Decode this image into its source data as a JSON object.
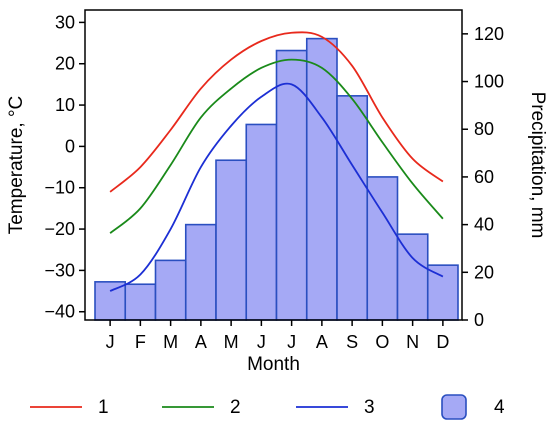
{
  "chart_data": {
    "type": "bar",
    "categories": [
      "J",
      "F",
      "M",
      "A",
      "M",
      "J",
      "J",
      "A",
      "S",
      "O",
      "N",
      "D"
    ],
    "xlabel": "Month",
    "ylabel_left": "Temperature, °C",
    "ylabel_right": "Precipitation, mm",
    "ylim_left": [
      -42,
      33
    ],
    "yticks_left": [
      -40,
      -30,
      -20,
      -10,
      0,
      10,
      20,
      30
    ],
    "ylim_right": [
      0,
      130
    ],
    "yticks_right": [
      0,
      20,
      40,
      60,
      80,
      100,
      120
    ],
    "grid": false,
    "series": [
      {
        "name": "1",
        "type": "line",
        "axis": "left",
        "color": "#e8291c",
        "values": [
          -11,
          -5,
          4,
          14,
          21,
          25.5,
          27.5,
          26.5,
          19.5,
          7,
          -3,
          -8.5
        ]
      },
      {
        "name": "2",
        "type": "line",
        "axis": "left",
        "color": "#1a8a1a",
        "values": [
          -21,
          -15,
          -4.5,
          7,
          14,
          19,
          21,
          19,
          11.5,
          1,
          -9,
          -17.5
        ]
      },
      {
        "name": "3",
        "type": "line",
        "axis": "left",
        "color": "#1c2fd4",
        "values": [
          -35,
          -31,
          -20,
          -5,
          5,
          12,
          15,
          7,
          -4.5,
          -16,
          -27,
          -31.5
        ]
      },
      {
        "name": "4",
        "type": "bar",
        "axis": "right",
        "color": "#a5a9f5",
        "edge_color": "#2a4fc0",
        "values": [
          16,
          15,
          25,
          40,
          67,
          82,
          113,
          118,
          94,
          60,
          36,
          23
        ]
      }
    ],
    "legend": {
      "position": "bottom",
      "items": [
        {
          "label": "1",
          "color": "#e8291c",
          "kind": "line"
        },
        {
          "label": "2",
          "color": "#1a8a1a",
          "kind": "line"
        },
        {
          "label": "3",
          "color": "#1c2fd4",
          "kind": "line"
        },
        {
          "label": "4",
          "color": "#a5a9f5",
          "kind": "box"
        }
      ]
    }
  }
}
